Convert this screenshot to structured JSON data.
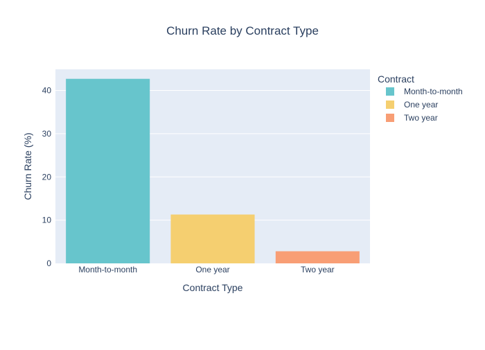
{
  "chart_data": {
    "type": "bar",
    "title": "Churn Rate by Contract Type",
    "xlabel": "Contract Type",
    "ylabel": "Churn Rate (%)",
    "categories": [
      "Month-to-month",
      "One year",
      "Two year"
    ],
    "values": [
      42.7,
      11.3,
      2.8
    ],
    "colors": [
      "#67c5cc",
      "#f5cf70",
      "#f89e75"
    ],
    "ylim": [
      0,
      44.9
    ],
    "yticks": [
      0,
      10,
      20,
      30,
      40
    ],
    "grid": true,
    "legend": {
      "title": "Contract",
      "placement": "right",
      "entries": [
        "Month-to-month",
        "One year",
        "Two year"
      ]
    },
    "plot_background": "#e5ecf6",
    "text_color": "#2a3f5f"
  }
}
